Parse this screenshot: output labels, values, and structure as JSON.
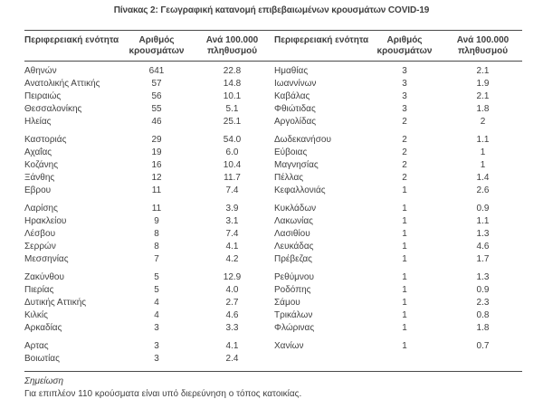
{
  "title": "Πίνακας 2: Γεωγραφική κατανομή επιβεβαιωμένων κρουσμάτων COVID-19",
  "table": {
    "headers": {
      "region": "Περιφερειακή ενότητα",
      "cases_line1": "Αριθμός",
      "cases_line2": "κρουσμάτων",
      "rate_line1": "Ανά 100.000",
      "rate_line2": "πληθυσμού"
    },
    "left_rows": [
      {
        "region": "Αθηνών",
        "cases": "641",
        "rate": "22.8"
      },
      {
        "region": "Ανατολικής Αττικής",
        "cases": "57",
        "rate": "14.8"
      },
      {
        "region": "Πειραιώς",
        "cases": "56",
        "rate": "10.1"
      },
      {
        "region": "Θεσσαλονίκης",
        "cases": "55",
        "rate": "5.1"
      },
      {
        "region": "Ηλείας",
        "cases": "46",
        "rate": "25.1"
      },
      {
        "region": "Καστοριάς",
        "cases": "29",
        "rate": "54.0",
        "gap": true
      },
      {
        "region": "Αχαΐας",
        "cases": "19",
        "rate": "6.0"
      },
      {
        "region": "Κοζάνης",
        "cases": "16",
        "rate": "10.4"
      },
      {
        "region": "Ξάνθης",
        "cases": "12",
        "rate": "11.7"
      },
      {
        "region": "Εβρου",
        "cases": "11",
        "rate": "7.4"
      },
      {
        "region": "Λαρίσης",
        "cases": "11",
        "rate": "3.9",
        "gap": true
      },
      {
        "region": "Ηρακλείου",
        "cases": "9",
        "rate": "3.1"
      },
      {
        "region": "Λέσβου",
        "cases": "8",
        "rate": "7.4"
      },
      {
        "region": "Σερρών",
        "cases": "8",
        "rate": "4.1"
      },
      {
        "region": "Μεσσηνίας",
        "cases": "7",
        "rate": "4.2"
      },
      {
        "region": "Ζακύνθου",
        "cases": "5",
        "rate": "12.9",
        "gap": true
      },
      {
        "region": "Πιερίας",
        "cases": "5",
        "rate": "4.0"
      },
      {
        "region": "Δυτικής Αττικής",
        "cases": "4",
        "rate": "2.7"
      },
      {
        "region": "Κιλκίς",
        "cases": "4",
        "rate": "4.6"
      },
      {
        "region": "Αρκαδίας",
        "cases": "3",
        "rate": "3.3"
      },
      {
        "region": "Αρτας",
        "cases": "3",
        "rate": "4.1",
        "gap": true
      },
      {
        "region": "Βοιωτίας",
        "cases": "3",
        "rate": "2.4"
      }
    ],
    "right_rows": [
      {
        "region": "Ημαθίας",
        "cases": "3",
        "rate": "2.1"
      },
      {
        "region": "Ιωαννίνων",
        "cases": "3",
        "rate": "1.9"
      },
      {
        "region": "Καβάλας",
        "cases": "3",
        "rate": "2.1"
      },
      {
        "region": "Φθιώτιδας",
        "cases": "3",
        "rate": "1.8"
      },
      {
        "region": "Αργολίδας",
        "cases": "2",
        "rate": "2"
      },
      {
        "region": "Δωδεκανήσου",
        "cases": "2",
        "rate": "1.1",
        "gap": true
      },
      {
        "region": "Εύβοιας",
        "cases": "2",
        "rate": "1"
      },
      {
        "region": "Μαγνησίας",
        "cases": "2",
        "rate": "1"
      },
      {
        "region": "Πέλλας",
        "cases": "2",
        "rate": "1.4"
      },
      {
        "region": "Κεφαλλονιάς",
        "cases": "1",
        "rate": "2.6"
      },
      {
        "region": "Κυκλάδων",
        "cases": "1",
        "rate": "0.9",
        "gap": true
      },
      {
        "region": "Λακωνίας",
        "cases": "1",
        "rate": "1.1"
      },
      {
        "region": "Λασιθίου",
        "cases": "1",
        "rate": "1.3"
      },
      {
        "region": "Λευκάδας",
        "cases": "1",
        "rate": "4.6"
      },
      {
        "region": "Πρέβεζας",
        "cases": "1",
        "rate": "1.7"
      },
      {
        "region": "Ρεθύμνου",
        "cases": "1",
        "rate": "1.3",
        "gap": true
      },
      {
        "region": "Ροδόπης",
        "cases": "1",
        "rate": "0.9"
      },
      {
        "region": "Σάμου",
        "cases": "1",
        "rate": "2.3"
      },
      {
        "region": "Τρικάλων",
        "cases": "1",
        "rate": "0.8"
      },
      {
        "region": "Φλώρινας",
        "cases": "1",
        "rate": "1.8"
      },
      {
        "region": "Χανίων",
        "cases": "1",
        "rate": "0.7",
        "gap": true
      }
    ],
    "note_label": "Σημείωση",
    "note_text": "Για επιπλέον 110 κρούσματα είναι υπό διερεύνηση ο τόπος κατοικίας."
  }
}
